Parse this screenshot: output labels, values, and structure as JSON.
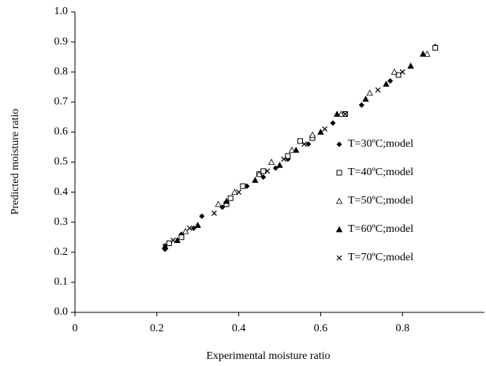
{
  "chart_data": {
    "type": "scatter",
    "x_label": "Experimental moisture ratio",
    "y_label": "Predicted moisture ratio",
    "xlim": [
      0,
      1
    ],
    "ylim": [
      0,
      1
    ],
    "xticks": [
      0,
      0.2,
      0.4,
      0.6,
      0.8
    ],
    "yticks": [
      {
        "value": 0,
        "label": "0.0"
      },
      0.1,
      0.2,
      0.3,
      0.4,
      0.5,
      0.6,
      0.7,
      0.8,
      0.9,
      {
        "value": 1,
        "label": "1.0"
      }
    ],
    "series": [
      {
        "name": "T=30ºC;model",
        "color": "#000000",
        "marker": "diamond",
        "x": [
          0.22,
          0.23,
          0.26,
          0.29,
          0.31,
          0.36,
          0.42,
          0.46,
          0.49,
          0.52,
          0.57,
          0.63,
          0.7,
          0.77,
          0.88
        ],
        "values": [
          0.21,
          0.23,
          0.26,
          0.28,
          0.32,
          0.35,
          0.42,
          0.45,
          0.48,
          0.51,
          0.56,
          0.63,
          0.69,
          0.77,
          0.885
        ]
      },
      {
        "name": "T=40ºC;model",
        "color": "#000000",
        "marker": "square",
        "x": [
          0.23,
          0.26,
          0.37,
          0.38,
          0.41,
          0.45,
          0.46,
          0.52,
          0.55,
          0.58,
          0.66,
          0.79,
          0.88
        ],
        "values": [
          0.23,
          0.25,
          0.36,
          0.38,
          0.42,
          0.46,
          0.47,
          0.52,
          0.57,
          0.58,
          0.66,
          0.79,
          0.88
        ]
      },
      {
        "name": "T=50ºC;model",
        "color": "#000000",
        "marker": "triangle",
        "x": [
          0.22,
          0.27,
          0.35,
          0.39,
          0.45,
          0.48,
          0.53,
          0.58,
          0.65,
          0.72,
          0.78,
          0.86
        ],
        "values": [
          0.22,
          0.27,
          0.36,
          0.4,
          0.46,
          0.5,
          0.54,
          0.59,
          0.66,
          0.73,
          0.8,
          0.86
        ]
      },
      {
        "name": "T=60ºC;model",
        "color": "#000000",
        "marker": "triangle-filled",
        "x": [
          0.22,
          0.25,
          0.3,
          0.37,
          0.44,
          0.5,
          0.54,
          0.6,
          0.64,
          0.71,
          0.76,
          0.82,
          0.85
        ],
        "values": [
          0.22,
          0.24,
          0.29,
          0.37,
          0.44,
          0.49,
          0.54,
          0.6,
          0.66,
          0.71,
          0.76,
          0.82,
          0.86
        ]
      },
      {
        "name": "T=70ºC;model",
        "color": "#000000",
        "marker": "x",
        "x": [
          0.22,
          0.24,
          0.28,
          0.34,
          0.4,
          0.47,
          0.51,
          0.56,
          0.61,
          0.66,
          0.74,
          0.8
        ],
        "values": [
          0.22,
          0.24,
          0.28,
          0.33,
          0.4,
          0.47,
          0.51,
          0.56,
          0.61,
          0.66,
          0.74,
          0.8
        ]
      }
    ]
  }
}
